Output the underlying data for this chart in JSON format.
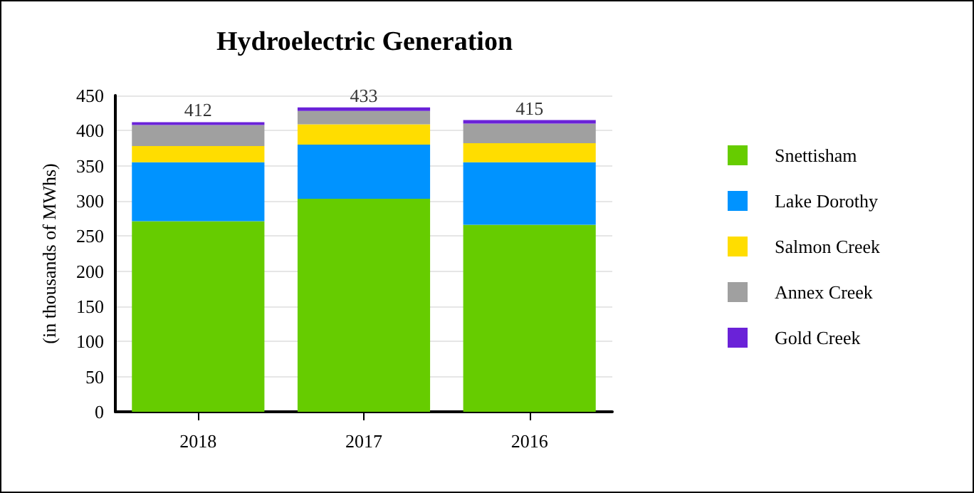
{
  "chart_data": {
    "type": "bar",
    "title": "Hydroelectric Generation",
    "ylabel": "(in thousands of MWhs)",
    "categories": [
      "2018",
      "2017",
      "2016"
    ],
    "stacked": true,
    "series": [
      {
        "name": "Snettisham",
        "color": "#66cc00",
        "values": [
          271,
          303,
          266
        ]
      },
      {
        "name": "Lake Dorothy",
        "color": "#0093ff",
        "values": [
          84,
          77,
          89
        ]
      },
      {
        "name": "Salmon Creek",
        "color": "#ffdd00",
        "values": [
          23,
          29,
          27
        ]
      },
      {
        "name": "Annex Creek",
        "color": "#a0a0a0",
        "values": [
          30,
          19,
          28
        ]
      },
      {
        "name": "Gold Creek",
        "color": "#6a22d8",
        "values": [
          4,
          5,
          5
        ]
      }
    ],
    "totals": [
      "412",
      "433",
      "415"
    ],
    "ylim": [
      0,
      450
    ],
    "yticks": [
      0,
      50,
      100,
      150,
      200,
      250,
      300,
      350,
      400,
      450
    ],
    "grid": "y",
    "legend": "right"
  }
}
